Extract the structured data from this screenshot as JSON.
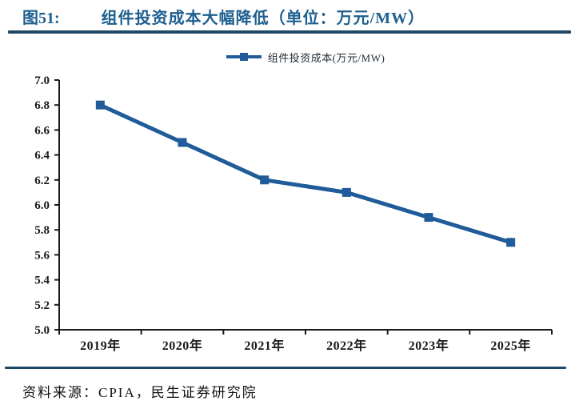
{
  "figure": {
    "label": "图51:",
    "title": "组件投资成本大幅降低（单位：万元/MW）",
    "source": "资料来源：CPIA，民生证券研究院"
  },
  "legend": {
    "label": "组件投资成本(万元/MW)"
  },
  "colors": {
    "title": "#1D5F8F",
    "divider": "#1F4A66",
    "series": "#1F5C99",
    "axis": "#1a1a1a",
    "text": "#1a1a1a"
  },
  "chart_data": {
    "type": "line",
    "title": "组件投资成本大幅降低（单位：万元/MW）",
    "categories": [
      "2019年",
      "2020年",
      "2021年",
      "2022年",
      "2023年",
      "2025年"
    ],
    "series": [
      {
        "name": "组件投资成本(万元/MW)",
        "values": [
          6.8,
          6.5,
          6.2,
          6.1,
          5.9,
          5.7
        ]
      }
    ],
    "xlabel": "",
    "ylabel": "",
    "ylim": [
      5.0,
      7.0
    ],
    "ytick_step": 0.2,
    "ytick_decimals": 1,
    "grid": false,
    "legend_position": "top",
    "marker": "square"
  }
}
